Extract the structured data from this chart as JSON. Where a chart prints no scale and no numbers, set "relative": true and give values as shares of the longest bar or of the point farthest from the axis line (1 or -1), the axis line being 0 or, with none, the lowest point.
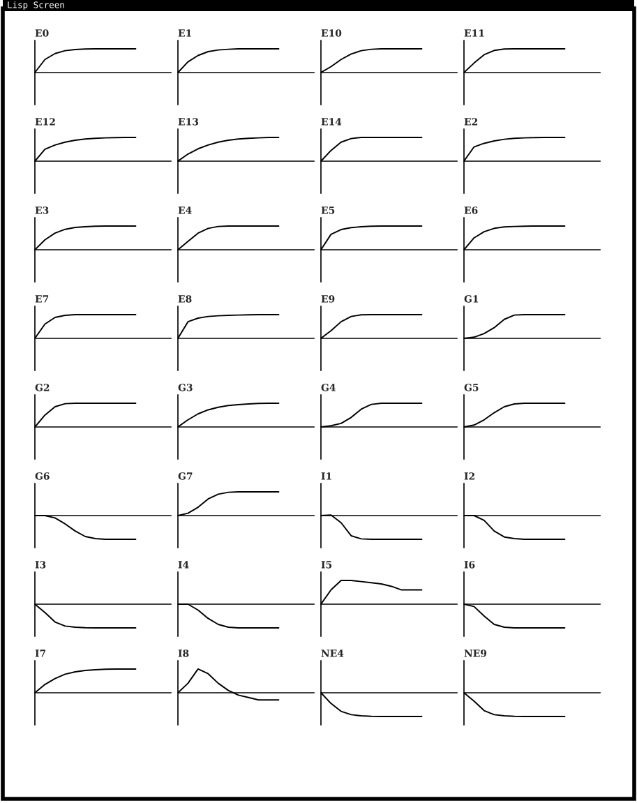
{
  "chart_data": [
    {
      "type": "other",
      "title": "Lisp Screen"
    },
    {
      "type": "line",
      "title": "E0",
      "relative": true,
      "color": "#000000",
      "categories": [
        null,
        null,
        null,
        null,
        null,
        null,
        null,
        null,
        null,
        null,
        null
      ],
      "values": [
        0,
        0.55,
        0.8,
        0.92,
        0.97,
        0.99,
        1,
        1,
        1,
        1,
        1
      ]
    },
    {
      "type": "line",
      "title": "E1",
      "relative": true,
      "color": "#000000",
      "categories": [
        null,
        null,
        null,
        null,
        null,
        null,
        null,
        null,
        null,
        null,
        null
      ],
      "values": [
        0,
        0.45,
        0.72,
        0.88,
        0.95,
        0.98,
        1,
        1,
        1,
        1,
        1
      ]
    },
    {
      "type": "line",
      "title": "E10",
      "relative": true,
      "color": "#000000",
      "categories": [
        null,
        null,
        null,
        null,
        null,
        null,
        null,
        null,
        null,
        null,
        null
      ],
      "values": [
        0,
        0.25,
        0.55,
        0.78,
        0.92,
        0.98,
        1,
        1,
        1,
        1,
        1
      ]
    },
    {
      "type": "line",
      "title": "E11",
      "relative": true,
      "color": "#000000",
      "categories": [
        null,
        null,
        null,
        null,
        null,
        null,
        null,
        null,
        null,
        null,
        null
      ],
      "values": [
        0,
        0.4,
        0.75,
        0.93,
        0.99,
        1,
        1,
        1,
        1,
        1,
        1
      ]
    },
    {
      "type": "line",
      "title": "E12",
      "relative": true,
      "color": "#000000",
      "categories": [
        null,
        null,
        null,
        null,
        null,
        null,
        null,
        null,
        null,
        null,
        null
      ],
      "values": [
        0,
        0.5,
        0.68,
        0.8,
        0.88,
        0.93,
        0.96,
        0.98,
        0.99,
        1,
        1
      ]
    },
    {
      "type": "line",
      "title": "E13",
      "relative": true,
      "color": "#000000",
      "categories": [
        null,
        null,
        null,
        null,
        null,
        null,
        null,
        null,
        null,
        null,
        null
      ],
      "values": [
        0,
        0.3,
        0.52,
        0.68,
        0.8,
        0.88,
        0.93,
        0.96,
        0.98,
        1,
        1
      ]
    },
    {
      "type": "line",
      "title": "E14",
      "relative": true,
      "color": "#000000",
      "categories": [
        null,
        null,
        null,
        null,
        null,
        null,
        null,
        null,
        null,
        null,
        null
      ],
      "values": [
        0,
        0.45,
        0.8,
        0.95,
        1,
        1,
        1,
        1,
        1,
        1,
        1
      ]
    },
    {
      "type": "line",
      "title": "E2",
      "relative": true,
      "color": "#000000",
      "categories": [
        null,
        null,
        null,
        null,
        null,
        null,
        null,
        null,
        null,
        null,
        null
      ],
      "values": [
        0,
        0.6,
        0.75,
        0.85,
        0.92,
        0.96,
        0.98,
        0.99,
        1,
        1,
        1
      ]
    },
    {
      "type": "line",
      "title": "E3",
      "relative": true,
      "color": "#000000",
      "categories": [
        null,
        null,
        null,
        null,
        null,
        null,
        null,
        null,
        null,
        null,
        null
      ],
      "values": [
        0,
        0.42,
        0.7,
        0.86,
        0.94,
        0.97,
        0.99,
        1,
        1,
        1,
        1
      ]
    },
    {
      "type": "line",
      "title": "E4",
      "relative": true,
      "color": "#000000",
      "categories": [
        null,
        null,
        null,
        null,
        null,
        null,
        null,
        null,
        null,
        null,
        null
      ],
      "values": [
        0,
        0.35,
        0.7,
        0.9,
        0.98,
        1,
        1,
        1,
        1,
        1,
        1
      ]
    },
    {
      "type": "line",
      "title": "E5",
      "relative": true,
      "color": "#000000",
      "categories": [
        null,
        null,
        null,
        null,
        null,
        null,
        null,
        null,
        null,
        null,
        null
      ],
      "values": [
        0,
        0.65,
        0.85,
        0.93,
        0.97,
        0.99,
        1,
        1,
        1,
        1,
        1
      ]
    },
    {
      "type": "line",
      "title": "E6",
      "relative": true,
      "color": "#000000",
      "categories": [
        null,
        null,
        null,
        null,
        null,
        null,
        null,
        null,
        null,
        null,
        null
      ],
      "values": [
        0,
        0.5,
        0.76,
        0.9,
        0.96,
        0.98,
        0.99,
        1,
        1,
        1,
        1
      ]
    },
    {
      "type": "line",
      "title": "E7",
      "relative": true,
      "color": "#000000",
      "categories": [
        null,
        null,
        null,
        null,
        null,
        null,
        null,
        null,
        null,
        null,
        null
      ],
      "values": [
        0,
        0.6,
        0.88,
        0.97,
        1,
        1,
        1,
        1,
        1,
        1,
        1
      ]
    },
    {
      "type": "line",
      "title": "E8",
      "relative": true,
      "color": "#000000",
      "categories": [
        null,
        null,
        null,
        null,
        null,
        null,
        null,
        null,
        null,
        null,
        null
      ],
      "values": [
        0,
        0.7,
        0.85,
        0.92,
        0.95,
        0.97,
        0.98,
        0.99,
        1,
        1,
        1
      ]
    },
    {
      "type": "line",
      "title": "E9",
      "relative": true,
      "color": "#000000",
      "categories": [
        null,
        null,
        null,
        null,
        null,
        null,
        null,
        null,
        null,
        null,
        null
      ],
      "values": [
        0,
        0.32,
        0.7,
        0.92,
        0.99,
        1,
        1,
        1,
        1,
        1,
        1
      ]
    },
    {
      "type": "line",
      "title": "G1",
      "relative": true,
      "color": "#000000",
      "categories": [
        null,
        null,
        null,
        null,
        null,
        null,
        null,
        null,
        null,
        null,
        null
      ],
      "values": [
        0,
        0.05,
        0.2,
        0.45,
        0.8,
        0.98,
        1,
        1,
        1,
        1,
        1
      ]
    },
    {
      "type": "line",
      "title": "G2",
      "relative": true,
      "color": "#000000",
      "categories": [
        null,
        null,
        null,
        null,
        null,
        null,
        null,
        null,
        null,
        null,
        null
      ],
      "values": [
        0,
        0.5,
        0.85,
        0.98,
        1,
        1,
        1,
        1,
        1,
        1,
        1
      ]
    },
    {
      "type": "line",
      "title": "G3",
      "relative": true,
      "color": "#000000",
      "categories": [
        null,
        null,
        null,
        null,
        null,
        null,
        null,
        null,
        null,
        null,
        null
      ],
      "values": [
        0,
        0.3,
        0.55,
        0.72,
        0.83,
        0.9,
        0.94,
        0.97,
        0.99,
        1,
        1
      ]
    },
    {
      "type": "line",
      "title": "G4",
      "relative": true,
      "color": "#000000",
      "categories": [
        null,
        null,
        null,
        null,
        null,
        null,
        null,
        null,
        null,
        null,
        null
      ],
      "values": [
        0,
        0.05,
        0.15,
        0.4,
        0.75,
        0.95,
        1,
        1,
        1,
        1,
        1
      ]
    },
    {
      "type": "line",
      "title": "G5",
      "relative": true,
      "color": "#000000",
      "categories": [
        null,
        null,
        null,
        null,
        null,
        null,
        null,
        null,
        null,
        null,
        null
      ],
      "values": [
        0,
        0.08,
        0.3,
        0.6,
        0.85,
        0.97,
        1,
        1,
        1,
        1,
        1
      ]
    },
    {
      "type": "line",
      "title": "G6",
      "relative": true,
      "color": "#000000",
      "categories": [
        null,
        null,
        null,
        null,
        null,
        null,
        null,
        null,
        null,
        null,
        null
      ],
      "values": [
        0,
        0,
        -0.1,
        -0.35,
        -0.65,
        -0.88,
        -0.97,
        -1,
        -1,
        -1,
        -1
      ]
    },
    {
      "type": "line",
      "title": "G7",
      "relative": true,
      "color": "#000000",
      "categories": [
        null,
        null,
        null,
        null,
        null,
        null,
        null,
        null,
        null,
        null,
        null
      ],
      "values": [
        0,
        0.1,
        0.35,
        0.7,
        0.9,
        0.98,
        1,
        1,
        1,
        1,
        1
      ]
    },
    {
      "type": "line",
      "title": "I1",
      "relative": true,
      "color": "#000000",
      "categories": [
        null,
        null,
        null,
        null,
        null,
        null,
        null,
        null,
        null,
        null,
        null
      ],
      "values": [
        0,
        0.02,
        -0.3,
        -0.85,
        -0.98,
        -1,
        -1,
        -1,
        -1,
        -1,
        -1
      ]
    },
    {
      "type": "line",
      "title": "I2",
      "relative": true,
      "color": "#000000",
      "categories": [
        null,
        null,
        null,
        null,
        null,
        null,
        null,
        null,
        null,
        null,
        null
      ],
      "values": [
        0,
        0,
        -0.2,
        -0.65,
        -0.9,
        -0.97,
        -1,
        -1,
        -1,
        -1,
        -1
      ]
    },
    {
      "type": "line",
      "title": "I3",
      "relative": true,
      "color": "#000000",
      "categories": [
        null,
        null,
        null,
        null,
        null,
        null,
        null,
        null,
        null,
        null,
        null
      ],
      "values": [
        0,
        -0.35,
        -0.75,
        -0.92,
        -0.97,
        -0.99,
        -1,
        -1,
        -1,
        -1,
        -1
      ]
    },
    {
      "type": "line",
      "title": "I4",
      "relative": true,
      "color": "#000000",
      "categories": [
        null,
        null,
        null,
        null,
        null,
        null,
        null,
        null,
        null,
        null,
        null
      ],
      "values": [
        0,
        0,
        -0.25,
        -0.6,
        -0.85,
        -0.97,
        -1,
        -1,
        -1,
        -1,
        -1
      ]
    },
    {
      "type": "line",
      "title": "I5",
      "relative": true,
      "color": "#000000",
      "categories": [
        null,
        null,
        null,
        null,
        null,
        null,
        null,
        null,
        null,
        null,
        null
      ],
      "values": [
        0,
        0.6,
        1,
        1,
        0.95,
        0.9,
        0.85,
        0.75,
        0.6,
        0.6,
        0.6
      ]
    },
    {
      "type": "line",
      "title": "I6",
      "relative": true,
      "color": "#000000",
      "categories": [
        null,
        null,
        null,
        null,
        null,
        null,
        null,
        null,
        null,
        null,
        null
      ],
      "values": [
        0,
        -0.1,
        -0.5,
        -0.85,
        -0.97,
        -1,
        -1,
        -1,
        -1,
        -1,
        -1
      ]
    },
    {
      "type": "line",
      "title": "I7",
      "relative": true,
      "color": "#000000",
      "categories": [
        null,
        null,
        null,
        null,
        null,
        null,
        null,
        null,
        null,
        null,
        null
      ],
      "values": [
        0,
        0.35,
        0.6,
        0.78,
        0.88,
        0.94,
        0.97,
        0.99,
        1,
        1,
        1
      ]
    },
    {
      "type": "line",
      "title": "I8",
      "relative": true,
      "color": "#000000",
      "categories": [
        null,
        null,
        null,
        null,
        null,
        null,
        null,
        null,
        null,
        null,
        null
      ],
      "values": [
        0,
        0.4,
        1,
        0.8,
        0.4,
        0.1,
        -0.1,
        -0.2,
        -0.3,
        -0.3,
        -0.3
      ]
    },
    {
      "type": "line",
      "title": "NE4",
      "relative": true,
      "color": "#000000",
      "categories": [
        null,
        null,
        null,
        null,
        null,
        null,
        null,
        null,
        null,
        null,
        null
      ],
      "values": [
        0,
        -0.45,
        -0.78,
        -0.92,
        -0.97,
        -0.99,
        -1,
        -1,
        -1,
        -1,
        -1
      ]
    },
    {
      "type": "line",
      "title": "NE9",
      "relative": true,
      "color": "#000000",
      "categories": [
        null,
        null,
        null,
        null,
        null,
        null,
        null,
        null,
        null,
        null,
        null
      ],
      "values": [
        0,
        -0.35,
        -0.75,
        -0.92,
        -0.97,
        -0.99,
        -1,
        -1,
        -1,
        -1,
        -1
      ]
    }
  ]
}
